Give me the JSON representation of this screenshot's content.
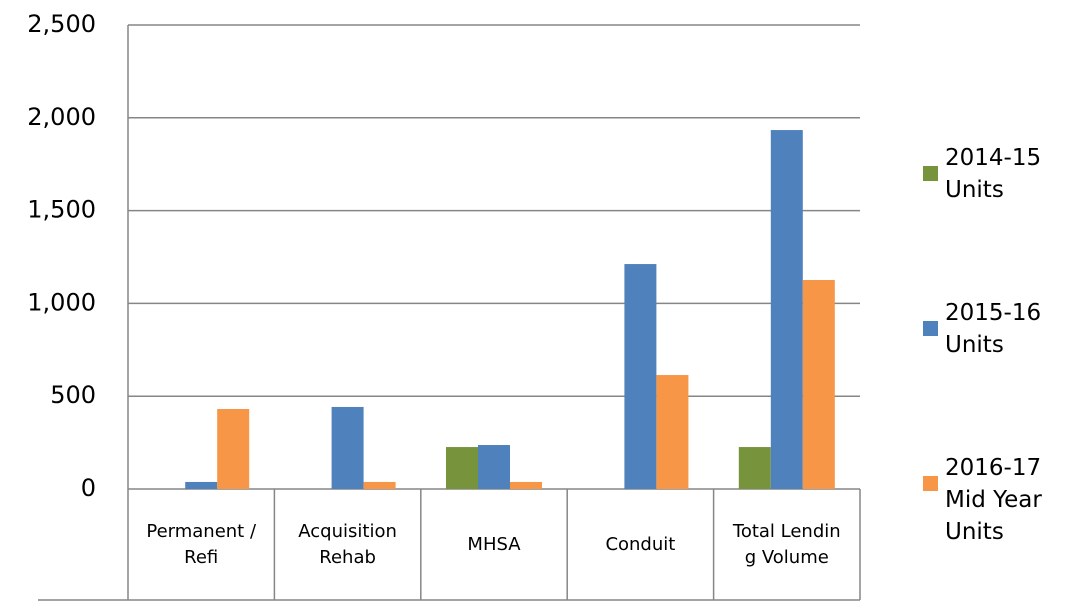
{
  "chart_data": {
    "type": "bar",
    "categories": [
      "Permanent / Refi",
      "Acquisition Rehab",
      "MHSA",
      "Conduit",
      "Total Lending Volume"
    ],
    "series": [
      {
        "name": "2014-15 Units",
        "color": "#77933c",
        "values": [
          0,
          0,
          226,
          0,
          226
        ]
      },
      {
        "name": "2015-16 Units",
        "color": "#4f81bd",
        "values": [
          38,
          442,
          237,
          1212,
          1934
        ]
      },
      {
        "name": "2016-17 Mid Year Units",
        "color": "#f79646",
        "values": [
          431,
          38,
          38,
          614,
          1126
        ]
      }
    ],
    "ylim": [
      0,
      2500
    ],
    "yticks": [
      0,
      {
        "value": 500,
        "label": "500"
      },
      {
        "value": 1000,
        "label": "1,000"
      },
      {
        "value": 1500,
        "label": "1,500"
      },
      {
        "value": 2000,
        "label": "2,000"
      },
      {
        "value": 2500,
        "label": "2,500"
      }
    ],
    "grid": true,
    "legend": "right"
  }
}
